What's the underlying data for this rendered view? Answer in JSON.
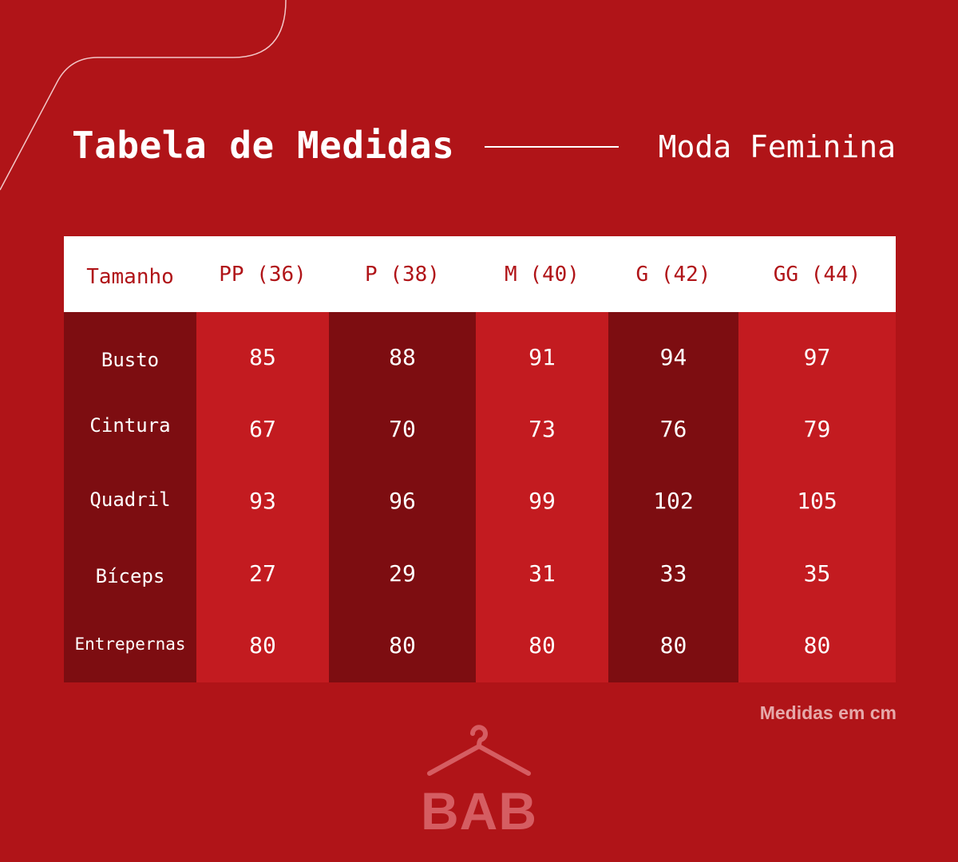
{
  "title": "Tabela de Medidas",
  "subtitle": "Moda Feminina",
  "table": {
    "header_label": "Tamanho",
    "sizes": [
      "PP (36)",
      "P (38)",
      "M (40)",
      "G (42)",
      "GG (44)"
    ],
    "rows": [
      {
        "label": "Busto",
        "values": [
          "85",
          "88",
          "91",
          "94",
          "97"
        ]
      },
      {
        "label": "Cintura",
        "values": [
          "67",
          "70",
          "73",
          "76",
          "79"
        ]
      },
      {
        "label": "Quadril",
        "values": [
          "93",
          "96",
          "99",
          "102",
          "105"
        ]
      },
      {
        "label": "Bíceps",
        "values": [
          "27",
          "29",
          "31",
          "33",
          "35"
        ]
      },
      {
        "label": "Entrepernas",
        "values": [
          "80",
          "80",
          "80",
          "80",
          "80"
        ]
      }
    ]
  },
  "note": "Medidas em cm",
  "brand": {
    "name": "BAB",
    "icon": "hanger-icon"
  },
  "colors": {
    "background": "#b01418",
    "column_dark": "#7d0d11",
    "column_light": "#c31b20",
    "header_bg": "#ffffff",
    "header_text": "#b01418",
    "logo": "#d55d62"
  }
}
